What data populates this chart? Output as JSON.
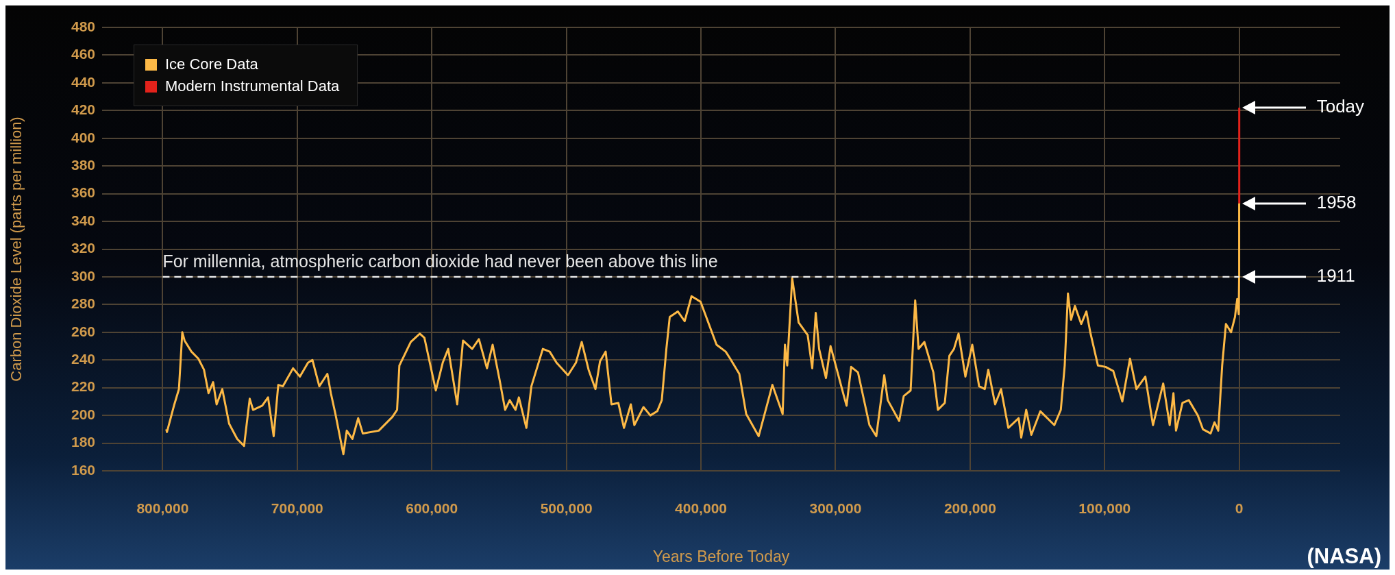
{
  "chart_data": {
    "type": "line",
    "xlabel": "Years Before Today",
    "ylabel": "Carbon Dioxide Level (parts per million)",
    "xlim": [
      845000,
      -75000
    ],
    "ylim": [
      160,
      480
    ],
    "xticks": [
      {
        "value": 800000,
        "label": "800,000"
      },
      {
        "value": 700000,
        "label": "700,000"
      },
      {
        "value": 600000,
        "label": "600,000"
      },
      {
        "value": 500000,
        "label": "500,000"
      },
      {
        "value": 400000,
        "label": "400,000"
      },
      {
        "value": 300000,
        "label": "300,000"
      },
      {
        "value": 200000,
        "label": "200,000"
      },
      {
        "value": 100000,
        "label": "100,000"
      },
      0
    ],
    "yticks": [
      160,
      180,
      200,
      220,
      240,
      260,
      280,
      300,
      320,
      340,
      360,
      380,
      400,
      420,
      440,
      460,
      480
    ],
    "grid": true,
    "legend": "top left",
    "series": [
      {
        "name": "Ice Core Data",
        "color": "#fdb946",
        "x": [
          797300,
          796800,
          791300,
          787900,
          785400,
          783700,
          778600,
          773500,
          769300,
          765900,
          762500,
          759900,
          755700,
          750600,
          744600,
          739500,
          735300,
          732800,
          726000,
          721700,
          717500,
          714100,
          710700,
          703100,
          698000,
          692000,
          688700,
          683600,
          677600,
          675000,
          671600,
          665700,
          663200,
          659000,
          654700,
          651300,
          639400,
          629200,
          625800,
          624100,
          615600,
          608900,
          605500,
          597000,
          591900,
          587800,
          581100,
          576800,
          570000,
          565000,
          559000,
          554800,
          549700,
          545500,
          542100,
          537800,
          535300,
          529700,
          526000,
          517500,
          512400,
          507300,
          498800,
          492900,
          488600,
          483500,
          478400,
          475000,
          470800,
          466500,
          461400,
          457200,
          452100,
          449500,
          442700,
          437600,
          432500,
          429100,
          425700,
          423200,
          417200,
          412100,
          407000,
          400300,
          388400,
          381600,
          378300,
          371500,
          366400,
          357100,
          346900,
          339300,
          337600,
          335900,
          332200,
          327400,
          320700,
          317300,
          314700,
          312200,
          307100,
          303700,
          293500,
          291800,
          288400,
          283300,
          274800,
          269700,
          263800,
          261200,
          252700,
          249300,
          244200,
          240800,
          238300,
          234000,
          227300,
          223900,
          218800,
          215400,
          212000,
          208600,
          203500,
          198400,
          193300,
          189100,
          186500,
          181400,
          177000,
          171600,
          163900,
          162000,
          158300,
          154500,
          147800,
          137400,
          132600,
          129700,
          127300,
          125000,
          122100,
          117400,
          113600,
          110700,
          105000,
          99300,
          93600,
          86900,
          81200,
          76400,
          69800,
          64100,
          56500,
          51700,
          48900,
          47000,
          42200,
          37500,
          30800,
          27000,
          21300,
          18400,
          15600,
          12700,
          9900,
          6100,
          3200,
          1500,
          400,
          110,
          65
        ],
        "values": [
          190,
          188,
          208,
          219,
          260,
          254,
          246,
          241,
          233,
          216,
          224,
          208,
          219,
          194,
          183,
          178,
          212,
          204,
          207,
          213,
          185,
          222,
          221,
          234,
          228,
          238,
          240,
          221,
          230,
          216,
          201,
          172,
          189,
          183,
          198,
          187,
          189,
          199,
          204,
          236,
          253,
          259,
          256,
          218,
          238,
          248,
          208,
          254,
          248,
          255,
          234,
          251,
          226,
          204,
          211,
          204,
          213,
          191,
          221,
          248,
          246,
          238,
          229,
          238,
          253,
          233,
          219,
          239,
          246,
          208,
          209,
          191,
          208,
          193,
          206,
          200,
          203,
          211,
          248,
          271,
          275,
          268,
          286,
          282,
          251,
          246,
          241,
          230,
          201,
          185,
          222,
          201,
          251,
          236,
          299,
          267,
          258,
          234,
          274,
          248,
          227,
          250,
          213,
          207,
          235,
          231,
          193,
          185,
          229,
          211,
          196,
          214,
          218,
          283,
          248,
          253,
          231,
          204,
          209,
          243,
          248,
          259,
          228,
          251,
          221,
          219,
          233,
          208,
          219,
          191,
          198,
          184,
          204,
          186,
          203,
          193,
          204,
          236,
          288,
          269,
          279,
          266,
          275,
          260,
          236,
          235,
          232,
          210,
          241,
          219,
          228,
          193,
          223,
          193,
          216,
          189,
          209,
          211,
          200,
          190,
          187,
          195,
          189,
          236,
          266,
          260,
          271,
          284,
          273,
          300,
          353
        ]
      },
      {
        "name": "Modern Instrumental Data",
        "color": "#e3221b",
        "x": [
          65,
          0
        ],
        "values": [
          353,
          422
        ]
      }
    ],
    "ref_lines": [
      {
        "axis": "y",
        "value": 300,
        "label": "For millennia, atmospheric carbon dioxide had never been above this line",
        "color": "#e6e6e6",
        "line_style": "dashed"
      }
    ],
    "annotations": [
      "Today",
      "1958",
      "1911",
      "(NASA)"
    ]
  }
}
